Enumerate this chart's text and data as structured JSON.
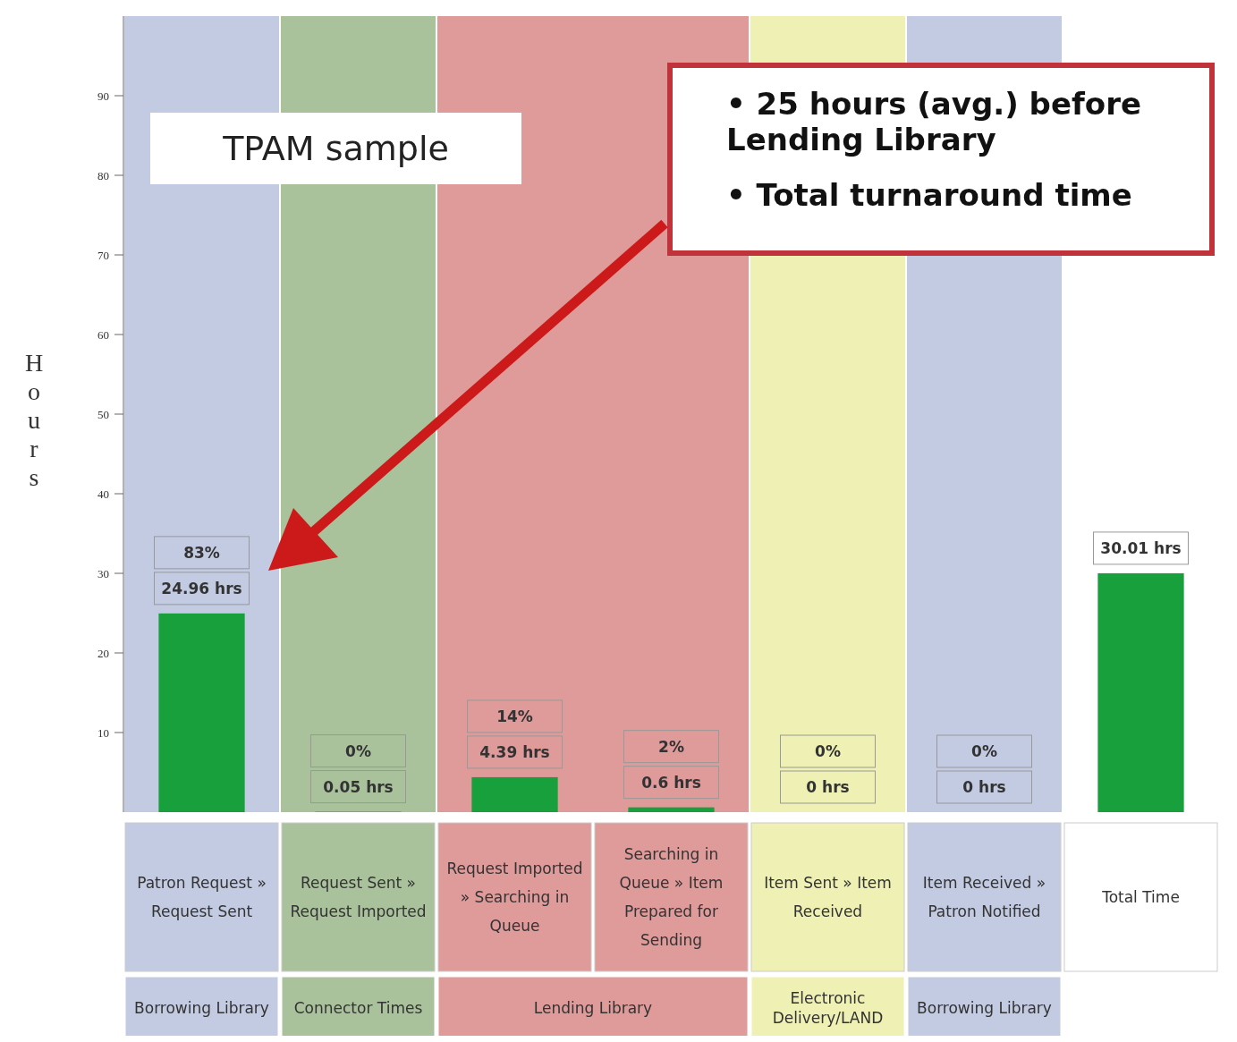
{
  "chart_data": {
    "type": "bar",
    "ylabel": "Hours",
    "categories": [
      "Patron Request » Request Sent",
      "Request Sent » Request Imported",
      "Request Imported » Searching in Queue",
      "Searching in Queue » Item Prepared for Sending",
      "Item Sent » Item Received",
      "Item Received » Patron Notified",
      "Total Time"
    ],
    "values": [
      24.96,
      0.05,
      4.39,
      0.6,
      0,
      0,
      30.01
    ],
    "color": "#17a03c",
    "value_labels": [
      "24.96 hrs",
      "0.05 hrs",
      "4.39 hrs",
      "0.6 hrs",
      "0 hrs",
      "0 hrs",
      "30.01 hrs"
    ],
    "ylim": [
      0,
      100
    ],
    "yticks": [
      10,
      20,
      30,
      40,
      50,
      60,
      70,
      80,
      90
    ],
    "bands": [
      {
        "axis": "x",
        "from": "Patron Request » Request Sent",
        "to": "Patron Request » Request Sent",
        "color": "#c3cbe2"
      },
      {
        "axis": "x",
        "from": "Request Sent » Request Imported",
        "to": "Request Sent » Request Imported",
        "color": "#a9c29c"
      },
      {
        "axis": "x",
        "from": "Request Imported » Searching in Queue",
        "to": "Searching in Queue » Item Prepared for Sending",
        "color": "#df9a9a"
      },
      {
        "axis": "x",
        "from": "Item Sent » Item Received",
        "to": "Item Sent » Item Received",
        "color": "#eef0b4"
      },
      {
        "axis": "x",
        "from": "Item Received » Patron Notified",
        "to": "Item Received » Patron Notified",
        "color": "#c3cbe2"
      }
    ],
    "annotations": [
      "TPAM sample",
      "• 25 hours (avg.) before Lending Library",
      "• Total turnaround time",
      "83%",
      "0%",
      "14%",
      "2%",
      "0%",
      "0%",
      "Borrowing Library",
      "Connector Times",
      "Lending Library",
      "Electronic Delivery/LAND",
      "Borrowing Library"
    ]
  }
}
